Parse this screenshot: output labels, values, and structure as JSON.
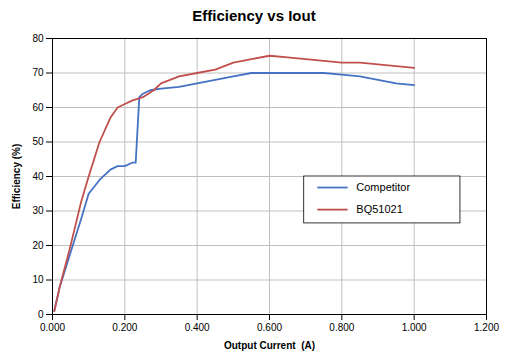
{
  "chart_data": {
    "type": "line",
    "title": "Efficiency vs Iout",
    "x_label": "Output Current  (A)",
    "y_label": "Efficiency (%)",
    "xlim": [
      0.0,
      1.2
    ],
    "ylim": [
      0,
      80
    ],
    "xticks": [
      {
        "value": 0.0,
        "label": "0.000"
      },
      {
        "value": 0.2,
        "label": "0.200"
      },
      {
        "value": 0.4,
        "label": "0.400"
      },
      {
        "value": 0.6,
        "label": "0.600"
      },
      {
        "value": 0.8,
        "label": "0.800"
      },
      {
        "value": 1.0,
        "label": "1.000"
      },
      {
        "value": 1.2,
        "label": "1.200"
      }
    ],
    "yticks": [
      0,
      10,
      20,
      30,
      40,
      50,
      60,
      70,
      80
    ],
    "grid": true,
    "legend": "right",
    "series": [
      {
        "name": "Competitor",
        "color": "#4472C4",
        "x": [
          0.005,
          0.02,
          0.05,
          0.08,
          0.1,
          0.13,
          0.16,
          0.18,
          0.2,
          0.22,
          0.23,
          0.24,
          0.25,
          0.27,
          0.3,
          0.35,
          0.4,
          0.45,
          0.5,
          0.55,
          0.6,
          0.65,
          0.7,
          0.75,
          0.8,
          0.85,
          0.9,
          0.95,
          1.0
        ],
        "values": [
          1,
          8,
          18,
          28,
          35,
          39,
          42,
          43,
          43,
          44,
          44,
          63,
          64,
          65,
          65.5,
          66,
          67,
          68,
          69,
          70,
          70,
          70,
          70,
          70,
          69.5,
          69,
          68,
          67,
          66.5
        ]
      },
      {
        "name": "BQ51021",
        "color": "#C0504D",
        "x": [
          0.005,
          0.02,
          0.05,
          0.08,
          0.1,
          0.13,
          0.16,
          0.18,
          0.2,
          0.22,
          0.25,
          0.28,
          0.3,
          0.35,
          0.4,
          0.45,
          0.5,
          0.55,
          0.6,
          0.65,
          0.7,
          0.75,
          0.8,
          0.85,
          0.9,
          0.95,
          1.0
        ],
        "values": [
          1,
          8,
          20,
          33,
          40,
          50,
          57,
          60,
          61,
          62,
          63,
          65,
          67,
          69,
          70,
          71,
          73,
          74,
          75,
          74.5,
          74,
          73.5,
          73,
          73,
          72.5,
          72,
          71.5
        ]
      }
    ]
  }
}
